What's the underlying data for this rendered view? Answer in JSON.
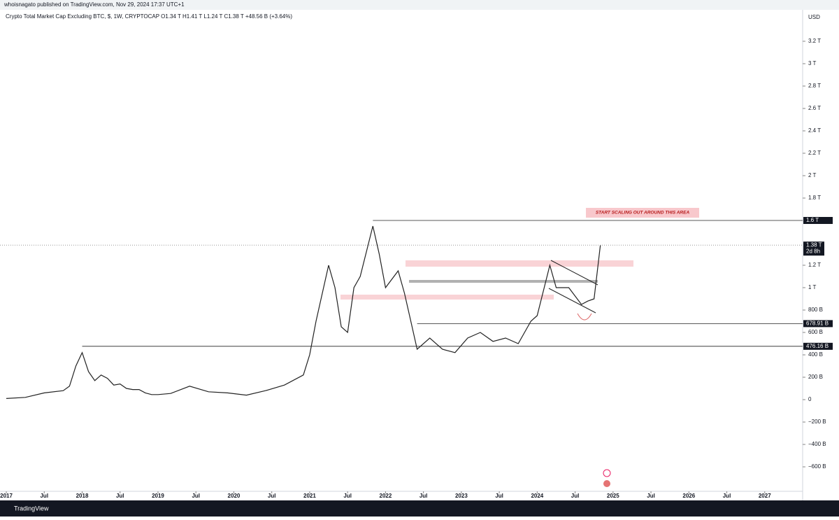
{
  "publisher": "whoisnagato published on TradingView.com, Nov 29, 2024 17:37 UTC+1",
  "footer": "TradingView",
  "chart_data": {
    "type": "line",
    "title": "Crypto Total Market Cap Excluding BTC, $, 1W, CRYPTOCAP  O1.34 T  H1.41 T  L1.24 T  C1.38 T  +48.56 B (+3.64%)",
    "y_unit": "USD",
    "annotation": "START SCALING OUT AROUND THIS AREA",
    "color": "#222222",
    "x": [
      "2017-01",
      "2017-04",
      "2017-07",
      "2017-10",
      "2017-11",
      "2017-12",
      "2018-01",
      "2018-02",
      "2018-03",
      "2018-04",
      "2018-05",
      "2018-06",
      "2018-07",
      "2018-08",
      "2018-09",
      "2018-10",
      "2018-11",
      "2018-12",
      "2019-01",
      "2019-03",
      "2019-06",
      "2019-09",
      "2019-12",
      "2020-03",
      "2020-06",
      "2020-09",
      "2020-12",
      "2021-01",
      "2021-02",
      "2021-04",
      "2021-05",
      "2021-06",
      "2021-07",
      "2021-08",
      "2021-09",
      "2021-11",
      "2021-12",
      "2022-01",
      "2022-03",
      "2022-04",
      "2022-05",
      "2022-06",
      "2022-08",
      "2022-10",
      "2022-12",
      "2023-02",
      "2023-04",
      "2023-06",
      "2023-08",
      "2023-10",
      "2023-12",
      "2024-01",
      "2024-03",
      "2024-04",
      "2024-06",
      "2024-08",
      "2024-09",
      "2024-10",
      "2024-11"
    ],
    "values": [
      10,
      20,
      60,
      80,
      120,
      300,
      420,
      250,
      170,
      220,
      190,
      130,
      140,
      100,
      90,
      90,
      60,
      45,
      45,
      55,
      120,
      70,
      60,
      40,
      80,
      130,
      220,
      400,
      700,
      1200,
      1000,
      650,
      600,
      1000,
      1100,
      1550,
      1300,
      1000,
      1150,
      950,
      700,
      450,
      550,
      450,
      420,
      550,
      600,
      520,
      550,
      500,
      700,
      750,
      1200,
      1000,
      1000,
      850,
      880,
      900,
      1380
    ],
    "xlim": [
      "2016-12",
      "2027-07"
    ],
    "xticks": [
      {
        "value": "2017-01",
        "label": "2017"
      },
      {
        "value": "2017-07",
        "label": "Jul"
      },
      {
        "value": "2018-01",
        "label": "2018"
      },
      {
        "value": "2018-07",
        "label": "Jul"
      },
      {
        "value": "2019-01",
        "label": "2019"
      },
      {
        "value": "2019-07",
        "label": "Jul"
      },
      {
        "value": "2020-01",
        "label": "2020"
      },
      {
        "value": "2020-07",
        "label": "Jul"
      },
      {
        "value": "2021-01",
        "label": "2021"
      },
      {
        "value": "2021-07",
        "label": "Jul"
      },
      {
        "value": "2022-01",
        "label": "2022"
      },
      {
        "value": "2022-07",
        "label": "Jul"
      },
      {
        "value": "2023-01",
        "label": "2023"
      },
      {
        "value": "2023-07",
        "label": "Jul"
      },
      {
        "value": "2024-01",
        "label": "2024"
      },
      {
        "value": "2024-07",
        "label": "Jul"
      },
      {
        "value": "2025-01",
        "label": "2025"
      },
      {
        "value": "2025-07",
        "label": "Jul"
      },
      {
        "value": "2026-01",
        "label": "2026"
      },
      {
        "value": "2026-07",
        "label": "Jul"
      },
      {
        "value": "2027-01",
        "label": "2027"
      }
    ],
    "ylim": [
      -806,
      3456
    ],
    "yticks": [
      {
        "value": 3200,
        "label": "3.2 T"
      },
      {
        "value": 3000,
        "label": "3 T"
      },
      {
        "value": 2800,
        "label": "2.8 T"
      },
      {
        "value": 2600,
        "label": "2.6 T"
      },
      {
        "value": 2400,
        "label": "2.4 T"
      },
      {
        "value": 2200,
        "label": "2.2 T"
      },
      {
        "value": 2000,
        "label": "2 T"
      },
      {
        "value": 1800,
        "label": "1.8 T"
      },
      {
        "value": 1200,
        "label": "1.2 T"
      },
      {
        "value": 1000,
        "label": "1 T"
      },
      {
        "value": 800,
        "label": "800 B"
      },
      {
        "value": 600,
        "label": "600 B"
      },
      {
        "value": 400,
        "label": "400 B"
      },
      {
        "value": 200,
        "label": "200 B"
      },
      0,
      {
        "value": -200,
        "label": "−200 B"
      },
      {
        "value": -400,
        "label": "−400 B"
      },
      {
        "value": -600,
        "label": "−600 B"
      }
    ],
    "levels": [
      {
        "value": 1600,
        "label": "1.6 T",
        "from": "2021-11"
      },
      {
        "value": 678.91,
        "label": "678.91 B",
        "from": "2022-06"
      },
      {
        "value": 476.16,
        "label": "476.16 B",
        "from": "2018-01"
      }
    ],
    "last": {
      "value": 1380,
      "label": "1.38 T",
      "countdown": "2d 8h"
    }
  }
}
